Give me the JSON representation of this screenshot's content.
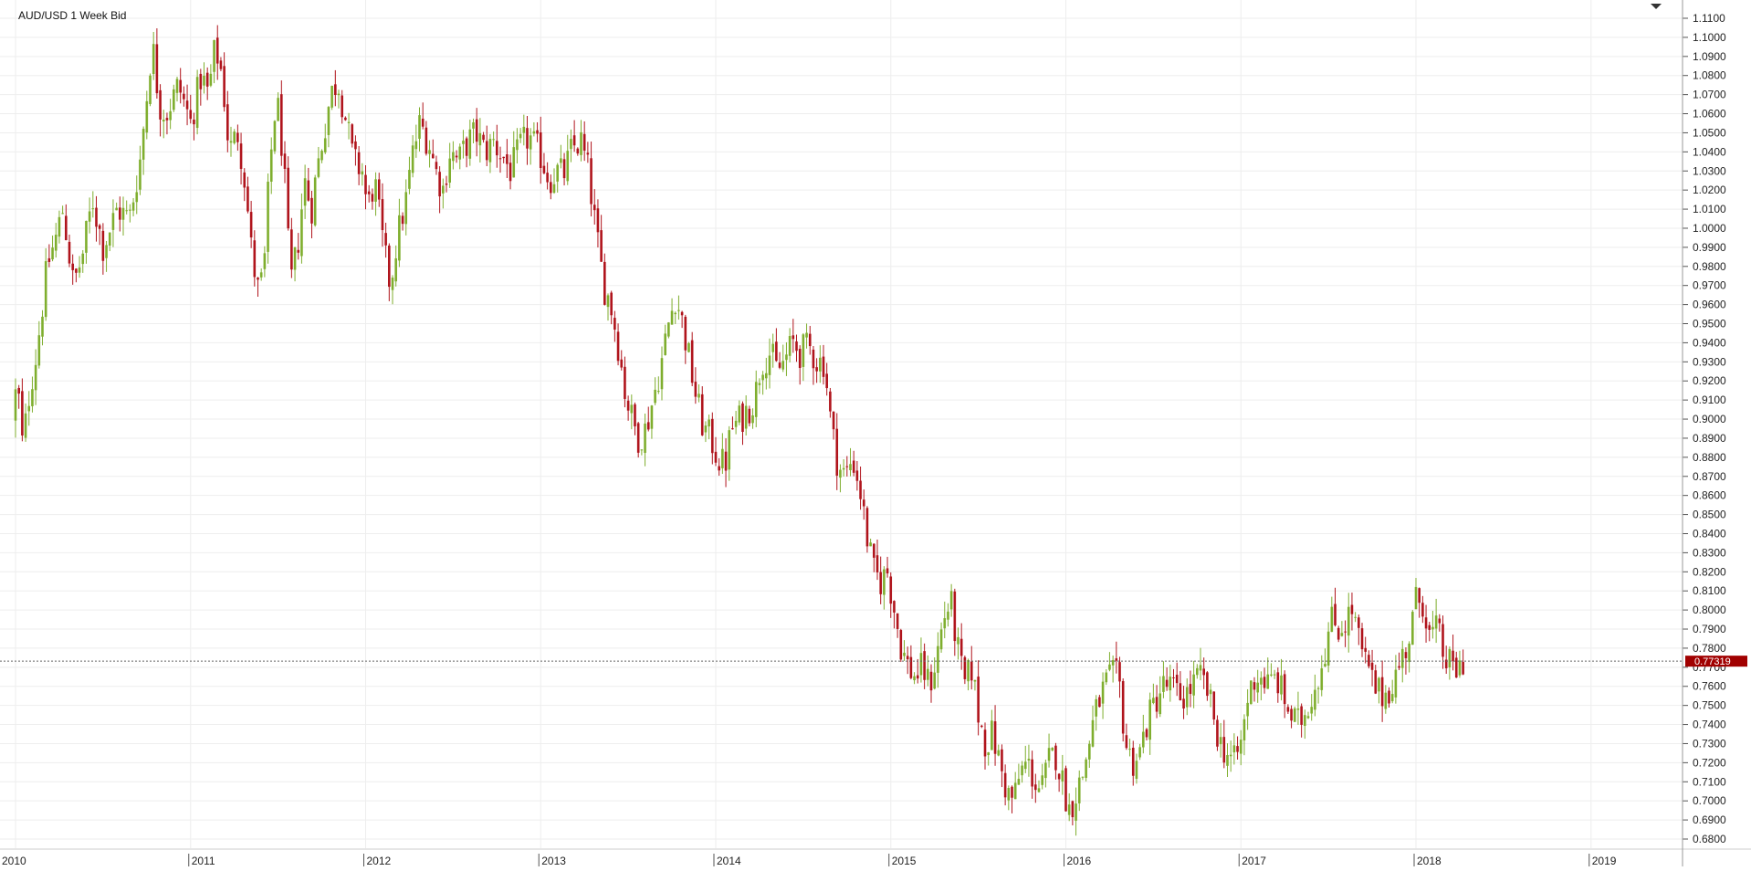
{
  "title": "AUD/USD  1 Week Bid",
  "last_price_label": "0.77319",
  "colors": {
    "up": "#7fae2e",
    "down": "#b0141c",
    "grid": "#eeeeee",
    "price_tag": "#a10000",
    "axis_text": "#222222"
  },
  "chart_data": {
    "type": "candlestick",
    "title": "AUD/USD  1 Week Bid",
    "frequency": "weekly",
    "x_axis_labels": [
      "2010",
      "2011",
      "2012",
      "2013",
      "2014",
      "2015",
      "2016",
      "2017",
      "2018",
      "2019"
    ],
    "x_range": [
      2010.0,
      2019.4
    ],
    "y_ticks": [
      "0.6800",
      "0.6900",
      "0.7000",
      "0.7100",
      "0.7200",
      "0.7300",
      "0.7400",
      "0.7500",
      "0.7600",
      "0.7700",
      "0.7800",
      "0.7900",
      "0.8000",
      "0.8100",
      "0.8200",
      "0.8300",
      "0.8400",
      "0.8500",
      "0.8600",
      "0.8700",
      "0.8800",
      "0.8900",
      "0.9000",
      "0.9100",
      "0.9200",
      "0.9300",
      "0.9400",
      "0.9500",
      "0.9600",
      "0.9700",
      "0.9800",
      "0.9900",
      "1.0000",
      "1.0100",
      "1.0200",
      "1.0300",
      "1.0400",
      "1.0500",
      "1.0600",
      "1.0700",
      "1.0800",
      "1.0900",
      "1.1000",
      "1.1100"
    ],
    "ylim": [
      0.673,
      1.1165
    ],
    "last_price": 0.77319,
    "grid": true,
    "price_path": [
      {
        "x": 2010.0,
        "y": 0.9
      },
      {
        "x": 2010.03,
        "y": 0.92
      },
      {
        "x": 2010.06,
        "y": 0.885
      },
      {
        "x": 2010.1,
        "y": 0.915
      },
      {
        "x": 2010.14,
        "y": 0.935
      },
      {
        "x": 2010.2,
        "y": 0.98
      },
      {
        "x": 2010.25,
        "y": 0.995
      },
      {
        "x": 2010.29,
        "y": 1.01
      },
      {
        "x": 2010.35,
        "y": 0.97
      },
      {
        "x": 2010.4,
        "y": 0.985
      },
      {
        "x": 2010.46,
        "y": 1.015
      },
      {
        "x": 2010.52,
        "y": 0.99
      },
      {
        "x": 2010.6,
        "y": 1.01
      },
      {
        "x": 2010.67,
        "y": 1.005
      },
      {
        "x": 2010.73,
        "y": 1.035
      },
      {
        "x": 2010.77,
        "y": 1.07
      },
      {
        "x": 2010.8,
        "y": 1.098
      },
      {
        "x": 2010.84,
        "y": 1.065
      },
      {
        "x": 2010.88,
        "y": 1.06
      },
      {
        "x": 2010.95,
        "y": 1.075
      },
      {
        "x": 2011.02,
        "y": 1.055
      },
      {
        "x": 2011.08,
        "y": 1.08
      },
      {
        "x": 2011.12,
        "y": 1.07
      },
      {
        "x": 2011.16,
        "y": 1.095
      },
      {
        "x": 2011.2,
        "y": 1.08
      },
      {
        "x": 2011.24,
        "y": 1.04
      },
      {
        "x": 2011.29,
        "y": 1.05
      },
      {
        "x": 2011.33,
        "y": 1.025
      },
      {
        "x": 2011.37,
        "y": 0.985
      },
      {
        "x": 2011.41,
        "y": 0.965
      },
      {
        "x": 2011.44,
        "y": 0.98
      },
      {
        "x": 2011.47,
        "y": 1.03
      },
      {
        "x": 2011.51,
        "y": 1.07
      },
      {
        "x": 2011.55,
        "y": 1.035
      },
      {
        "x": 2011.59,
        "y": 0.97
      },
      {
        "x": 2011.63,
        "y": 0.99
      },
      {
        "x": 2011.67,
        "y": 1.025
      },
      {
        "x": 2011.71,
        "y": 1.01
      },
      {
        "x": 2011.74,
        "y": 1.03
      },
      {
        "x": 2011.78,
        "y": 1.05
      },
      {
        "x": 2011.82,
        "y": 1.07
      },
      {
        "x": 2011.86,
        "y": 1.078
      },
      {
        "x": 2011.9,
        "y": 1.06
      },
      {
        "x": 2011.95,
        "y": 1.035
      },
      {
        "x": 2012.0,
        "y": 1.03
      },
      {
        "x": 2012.03,
        "y": 1.01
      },
      {
        "x": 2012.07,
        "y": 1.025
      },
      {
        "x": 2012.12,
        "y": 0.99
      },
      {
        "x": 2012.16,
        "y": 0.97
      },
      {
        "x": 2012.2,
        "y": 0.995
      },
      {
        "x": 2012.25,
        "y": 1.015
      },
      {
        "x": 2012.29,
        "y": 1.04
      },
      {
        "x": 2012.33,
        "y": 1.055
      },
      {
        "x": 2012.38,
        "y": 1.045
      },
      {
        "x": 2012.42,
        "y": 1.03
      },
      {
        "x": 2012.46,
        "y": 1.02
      },
      {
        "x": 2012.5,
        "y": 1.04
      },
      {
        "x": 2012.55,
        "y": 1.035
      },
      {
        "x": 2012.6,
        "y": 1.045
      },
      {
        "x": 2012.65,
        "y": 1.05
      },
      {
        "x": 2012.7,
        "y": 1.04
      },
      {
        "x": 2012.75,
        "y": 1.045
      },
      {
        "x": 2012.8,
        "y": 1.038
      },
      {
        "x": 2012.85,
        "y": 1.03
      },
      {
        "x": 2012.9,
        "y": 1.042
      },
      {
        "x": 2012.95,
        "y": 1.048
      },
      {
        "x": 2013.02,
        "y": 1.038
      },
      {
        "x": 2013.07,
        "y": 1.025
      },
      {
        "x": 2013.11,
        "y": 1.03
      },
      {
        "x": 2013.15,
        "y": 1.028
      },
      {
        "x": 2013.2,
        "y": 1.042
      },
      {
        "x": 2013.25,
        "y": 1.045
      },
      {
        "x": 2013.29,
        "y": 1.03
      },
      {
        "x": 2013.34,
        "y": 0.995
      },
      {
        "x": 2013.38,
        "y": 0.97
      },
      {
        "x": 2013.42,
        "y": 0.96
      },
      {
        "x": 2013.46,
        "y": 0.94
      },
      {
        "x": 2013.5,
        "y": 0.915
      },
      {
        "x": 2013.54,
        "y": 0.9
      },
      {
        "x": 2013.58,
        "y": 0.89
      },
      {
        "x": 2013.62,
        "y": 0.895
      },
      {
        "x": 2013.66,
        "y": 0.91
      },
      {
        "x": 2013.71,
        "y": 0.93
      },
      {
        "x": 2013.75,
        "y": 0.95
      },
      {
        "x": 2013.79,
        "y": 0.965
      },
      {
        "x": 2013.83,
        "y": 0.95
      },
      {
        "x": 2013.87,
        "y": 0.93
      },
      {
        "x": 2013.91,
        "y": 0.91
      },
      {
        "x": 2013.95,
        "y": 0.895
      },
      {
        "x": 2013.99,
        "y": 0.89
      },
      {
        "x": 2014.03,
        "y": 0.88
      },
      {
        "x": 2014.07,
        "y": 0.875
      },
      {
        "x": 2014.11,
        "y": 0.895
      },
      {
        "x": 2014.16,
        "y": 0.9
      },
      {
        "x": 2014.2,
        "y": 0.905
      },
      {
        "x": 2014.24,
        "y": 0.91
      },
      {
        "x": 2014.28,
        "y": 0.93
      },
      {
        "x": 2014.33,
        "y": 0.935
      },
      {
        "x": 2014.37,
        "y": 0.925
      },
      {
        "x": 2014.41,
        "y": 0.93
      },
      {
        "x": 2014.46,
        "y": 0.94
      },
      {
        "x": 2014.5,
        "y": 0.935
      },
      {
        "x": 2014.55,
        "y": 0.938
      },
      {
        "x": 2014.6,
        "y": 0.93
      },
      {
        "x": 2014.64,
        "y": 0.93
      },
      {
        "x": 2014.68,
        "y": 0.895
      },
      {
        "x": 2014.72,
        "y": 0.875
      },
      {
        "x": 2014.76,
        "y": 0.87
      },
      {
        "x": 2014.8,
        "y": 0.88
      },
      {
        "x": 2014.84,
        "y": 0.865
      },
      {
        "x": 2014.88,
        "y": 0.84
      },
      {
        "x": 2014.92,
        "y": 0.82
      },
      {
        "x": 2014.96,
        "y": 0.815
      },
      {
        "x": 2015.0,
        "y": 0.82
      },
      {
        "x": 2015.04,
        "y": 0.8
      },
      {
        "x": 2015.08,
        "y": 0.78
      },
      {
        "x": 2015.12,
        "y": 0.77
      },
      {
        "x": 2015.16,
        "y": 0.765
      },
      {
        "x": 2015.2,
        "y": 0.77
      },
      {
        "x": 2015.24,
        "y": 0.76
      },
      {
        "x": 2015.28,
        "y": 0.775
      },
      {
        "x": 2015.32,
        "y": 0.795
      },
      {
        "x": 2015.36,
        "y": 0.805
      },
      {
        "x": 2015.4,
        "y": 0.78
      },
      {
        "x": 2015.44,
        "y": 0.76
      },
      {
        "x": 2015.48,
        "y": 0.77
      },
      {
        "x": 2015.52,
        "y": 0.745
      },
      {
        "x": 2015.56,
        "y": 0.73
      },
      {
        "x": 2015.6,
        "y": 0.735
      },
      {
        "x": 2015.64,
        "y": 0.72
      },
      {
        "x": 2015.68,
        "y": 0.705
      },
      {
        "x": 2015.72,
        "y": 0.7
      },
      {
        "x": 2015.76,
        "y": 0.715
      },
      {
        "x": 2015.8,
        "y": 0.72
      },
      {
        "x": 2015.84,
        "y": 0.71
      },
      {
        "x": 2015.88,
        "y": 0.705
      },
      {
        "x": 2015.92,
        "y": 0.72
      },
      {
        "x": 2015.96,
        "y": 0.725
      },
      {
        "x": 2016.0,
        "y": 0.71
      },
      {
        "x": 2016.04,
        "y": 0.695
      },
      {
        "x": 2016.08,
        "y": 0.705
      },
      {
        "x": 2016.12,
        "y": 0.715
      },
      {
        "x": 2016.16,
        "y": 0.735
      },
      {
        "x": 2016.2,
        "y": 0.75
      },
      {
        "x": 2016.24,
        "y": 0.76
      },
      {
        "x": 2016.28,
        "y": 0.765
      },
      {
        "x": 2016.32,
        "y": 0.765
      },
      {
        "x": 2016.36,
        "y": 0.73
      },
      {
        "x": 2016.4,
        "y": 0.72
      },
      {
        "x": 2016.44,
        "y": 0.725
      },
      {
        "x": 2016.48,
        "y": 0.74
      },
      {
        "x": 2016.52,
        "y": 0.75
      },
      {
        "x": 2016.57,
        "y": 0.76
      },
      {
        "x": 2016.62,
        "y": 0.76
      },
      {
        "x": 2016.66,
        "y": 0.755
      },
      {
        "x": 2016.7,
        "y": 0.755
      },
      {
        "x": 2016.74,
        "y": 0.76
      },
      {
        "x": 2016.78,
        "y": 0.765
      },
      {
        "x": 2016.82,
        "y": 0.76
      },
      {
        "x": 2016.86,
        "y": 0.745
      },
      {
        "x": 2016.9,
        "y": 0.73
      },
      {
        "x": 2016.94,
        "y": 0.725
      },
      {
        "x": 2016.98,
        "y": 0.72
      },
      {
        "x": 2017.02,
        "y": 0.73
      },
      {
        "x": 2017.06,
        "y": 0.755
      },
      {
        "x": 2017.1,
        "y": 0.765
      },
      {
        "x": 2017.14,
        "y": 0.765
      },
      {
        "x": 2017.18,
        "y": 0.76
      },
      {
        "x": 2017.22,
        "y": 0.765
      },
      {
        "x": 2017.26,
        "y": 0.755
      },
      {
        "x": 2017.3,
        "y": 0.745
      },
      {
        "x": 2017.34,
        "y": 0.74
      },
      {
        "x": 2017.38,
        "y": 0.745
      },
      {
        "x": 2017.42,
        "y": 0.755
      },
      {
        "x": 2017.46,
        "y": 0.765
      },
      {
        "x": 2017.5,
        "y": 0.78
      },
      {
        "x": 2017.54,
        "y": 0.795
      },
      {
        "x": 2017.58,
        "y": 0.79
      },
      {
        "x": 2017.62,
        "y": 0.795
      },
      {
        "x": 2017.66,
        "y": 0.8
      },
      {
        "x": 2017.7,
        "y": 0.78
      },
      {
        "x": 2017.74,
        "y": 0.77
      },
      {
        "x": 2017.78,
        "y": 0.76
      },
      {
        "x": 2017.82,
        "y": 0.755
      },
      {
        "x": 2017.86,
        "y": 0.758
      },
      {
        "x": 2017.9,
        "y": 0.765
      },
      {
        "x": 2017.94,
        "y": 0.775
      },
      {
        "x": 2017.98,
        "y": 0.785
      },
      {
        "x": 2018.02,
        "y": 0.805
      },
      {
        "x": 2018.06,
        "y": 0.805
      },
      {
        "x": 2018.1,
        "y": 0.785
      },
      {
        "x": 2018.14,
        "y": 0.79
      },
      {
        "x": 2018.18,
        "y": 0.775
      },
      {
        "x": 2018.22,
        "y": 0.77
      },
      {
        "x": 2018.26,
        "y": 0.768
      },
      {
        "x": 2018.28,
        "y": 0.7732
      }
    ]
  }
}
